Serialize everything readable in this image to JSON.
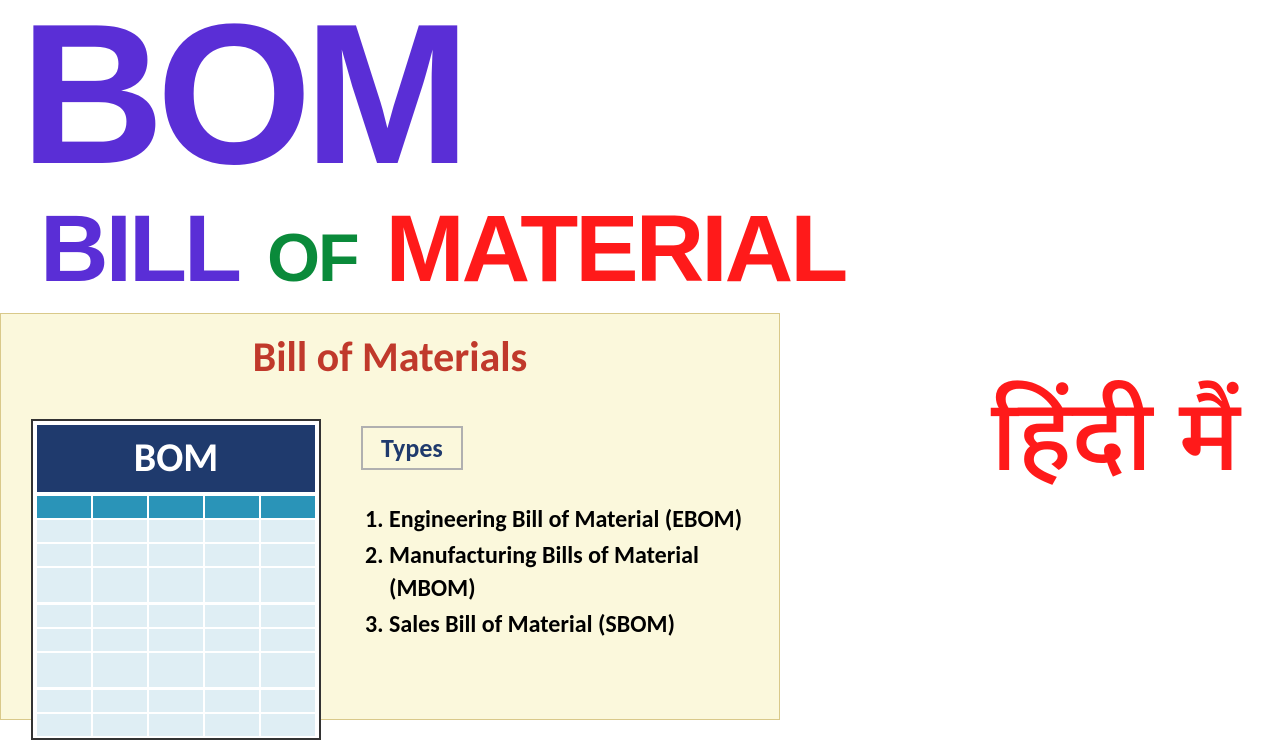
{
  "title": {
    "text": "BOM",
    "color": "#5a2ed6"
  },
  "subtitle": {
    "bill": {
      "text": "BILL",
      "color": "#5a2ed6"
    },
    "of": {
      "text": "OF",
      "color": "#0a8a3a"
    },
    "material": {
      "text": "MATERIAL",
      "color": "#ff1a1a"
    }
  },
  "panel": {
    "bg_color": "#fbf8dc",
    "heading": {
      "text": "Bill of Materials",
      "color": "#c0392b"
    },
    "table": {
      "title": "BOM",
      "title_bg": "#1f3a6d",
      "header_cell_color": "#2a94b8",
      "body_cell_color": "#dfeef4",
      "columns": 5,
      "rows": [
        {
          "tall": false
        },
        {
          "tall": false
        },
        {
          "tall": true
        },
        {
          "tall": false
        },
        {
          "tall": false
        },
        {
          "tall": true
        },
        {
          "tall": false
        },
        {
          "tall": false
        }
      ]
    },
    "types_label": {
      "text": "Types",
      "color": "#1f3a6d"
    },
    "types_list": [
      "Engineering Bill of Material (EBOM)",
      "Manufacturing Bills of Material (MBOM)",
      "Sales Bill of Material (SBOM)"
    ]
  },
  "hindi": {
    "text": "हिंदी मैं",
    "color": "#ff1a1a"
  }
}
